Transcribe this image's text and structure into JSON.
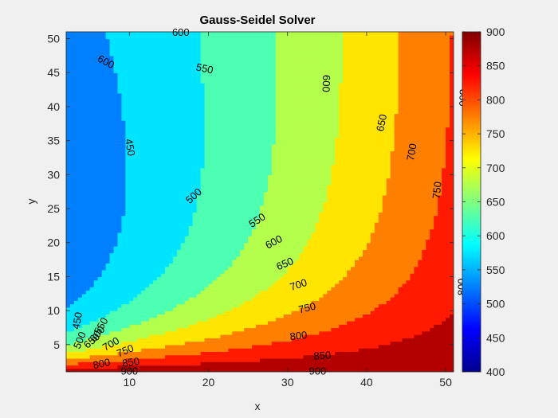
{
  "chart_data": {
    "type": "contourf",
    "title": "Gauss-Seidel Solver",
    "xlabel": "x",
    "ylabel": "y",
    "xlim": [
      2,
      51
    ],
    "ylim": [
      1,
      51
    ],
    "xticks": [
      "10",
      "20",
      "30",
      "40",
      "50"
    ],
    "yticks": [
      "5",
      "10",
      "15",
      "20",
      "25",
      "30",
      "35",
      "40",
      "45",
      "50"
    ],
    "colorbar": {
      "colormap": "jet",
      "limits": [
        400,
        900
      ],
      "ticks": [
        "400",
        "450",
        "500",
        "550",
        "600",
        "650",
        "700",
        "750",
        "800",
        "850",
        "900"
      ]
    },
    "levels": [
      400,
      450,
      500,
      550,
      600,
      650,
      700,
      750,
      800,
      850,
      900
    ],
    "contour_labels": [
      {
        "text": "600",
        "x": 16.5,
        "y": 50.8,
        "angle": 0
      },
      {
        "text": "600",
        "x": 7,
        "y": 46.5,
        "angle": 28
      },
      {
        "text": "550",
        "x": 19.5,
        "y": 45.5,
        "angle": 12
      },
      {
        "text": "450",
        "x": 10,
        "y": 34,
        "angle": 80
      },
      {
        "text": "500",
        "x": 18.2,
        "y": 26.8,
        "angle": -42
      },
      {
        "text": "550",
        "x": 26.2,
        "y": 23.2,
        "angle": -33
      },
      {
        "text": "600",
        "x": 28.3,
        "y": 20,
        "angle": -28
      },
      {
        "text": "650",
        "x": 29.7,
        "y": 16.8,
        "angle": -23
      },
      {
        "text": "700",
        "x": 31.4,
        "y": 13.7,
        "angle": -18
      },
      {
        "text": "750",
        "x": 32.5,
        "y": 10.3,
        "angle": -14
      },
      {
        "text": "800",
        "x": 31.4,
        "y": 6.2,
        "angle": -6
      },
      {
        "text": "850",
        "x": 34.4,
        "y": 3.3,
        "angle": -4
      },
      {
        "text": "900",
        "x": 33.8,
        "y": 1.0,
        "angle": 0
      },
      {
        "text": "600",
        "x": 34.8,
        "y": 43.4,
        "angle": 92
      },
      {
        "text": "650",
        "x": 42,
        "y": 37.6,
        "angle": -78
      },
      {
        "text": "700",
        "x": 45.8,
        "y": 33.3,
        "angle": -80
      },
      {
        "text": "750",
        "x": 49,
        "y": 27.7,
        "angle": -84
      },
      {
        "text": "800",
        "x": 52.1,
        "y": 41.3,
        "angle": 92
      },
      {
        "text": "800",
        "x": 52.1,
        "y": 13.5,
        "angle": -90
      },
      {
        "text": "900",
        "x": 10,
        "y": 1.0,
        "angle": 0
      },
      {
        "text": "850",
        "x": 10.2,
        "y": 2.3,
        "angle": -8
      },
      {
        "text": "800",
        "x": 6.5,
        "y": 2.1,
        "angle": -12
      },
      {
        "text": "750",
        "x": 9.5,
        "y": 4.0,
        "angle": -22
      },
      {
        "text": "700",
        "x": 7.7,
        "y": 5.0,
        "angle": -30
      },
      {
        "text": "650",
        "x": 5.3,
        "y": 5.5,
        "angle": -40
      },
      {
        "text": "600",
        "x": 6.0,
        "y": 6.5,
        "angle": -50
      },
      {
        "text": "550",
        "x": 6.5,
        "y": 7.7,
        "angle": -60
      },
      {
        "text": "500",
        "x": 3.8,
        "y": 5.6,
        "angle": -68
      },
      {
        "text": "450",
        "x": 3.5,
        "y": 8.5,
        "angle": -80
      }
    ]
  }
}
